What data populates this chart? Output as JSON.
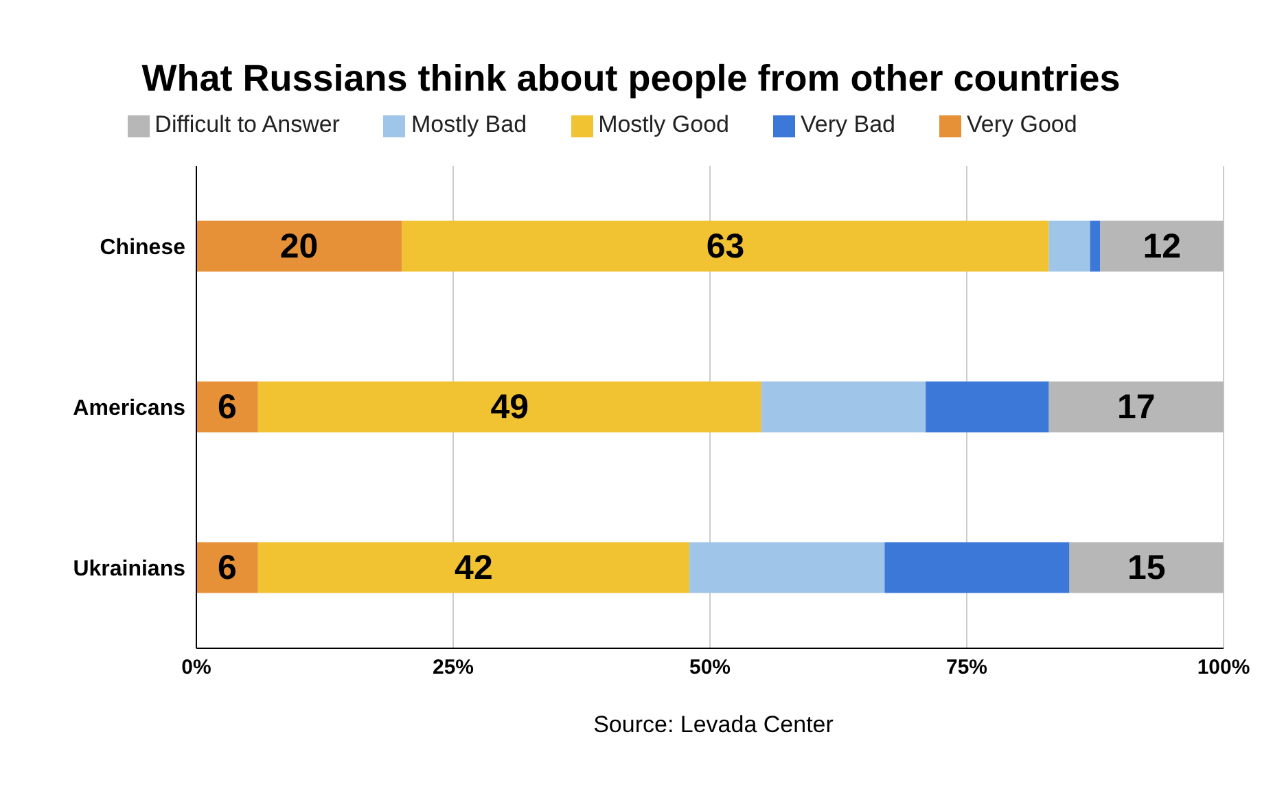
{
  "chart_data": {
    "type": "bar",
    "orientation": "horizontal",
    "stacked": true,
    "title": "What Russians think about people from other countries",
    "categories": [
      "Chinese",
      "Americans",
      "Ukrainians"
    ],
    "series": [
      {
        "name": "Very Good",
        "color": "#e69138",
        "values": [
          20,
          6,
          6
        ],
        "value_labels": [
          "20",
          "6",
          "6"
        ]
      },
      {
        "name": "Mostly Good",
        "color": "#f1c232",
        "values": [
          63,
          49,
          42
        ],
        "value_labels": [
          "63",
          "49",
          "42"
        ]
      },
      {
        "name": "Mostly Bad",
        "color": "#9fc5e8",
        "values": [
          4,
          16,
          19
        ],
        "value_labels": [
          null,
          null,
          null
        ]
      },
      {
        "name": "Very Bad",
        "color": "#3c78d8",
        "values": [
          1,
          12,
          18
        ],
        "value_labels": [
          null,
          null,
          null
        ]
      },
      {
        "name": "Difficult to Answer",
        "color": "#b7b7b7",
        "values": [
          12,
          17,
          15
        ],
        "value_labels": [
          "12",
          "17",
          "15"
        ]
      }
    ],
    "xlim": [
      0,
      100
    ],
    "xticks": [
      {
        "value": 0,
        "label": "0%"
      },
      {
        "value": 25,
        "label": "25%"
      },
      {
        "value": 50,
        "label": "50%"
      },
      {
        "value": 75,
        "label": "75%"
      },
      {
        "value": 100,
        "label": "100%"
      }
    ],
    "grid": "x",
    "legend": "top",
    "annotations": [
      "Source: Levada Center"
    ]
  }
}
